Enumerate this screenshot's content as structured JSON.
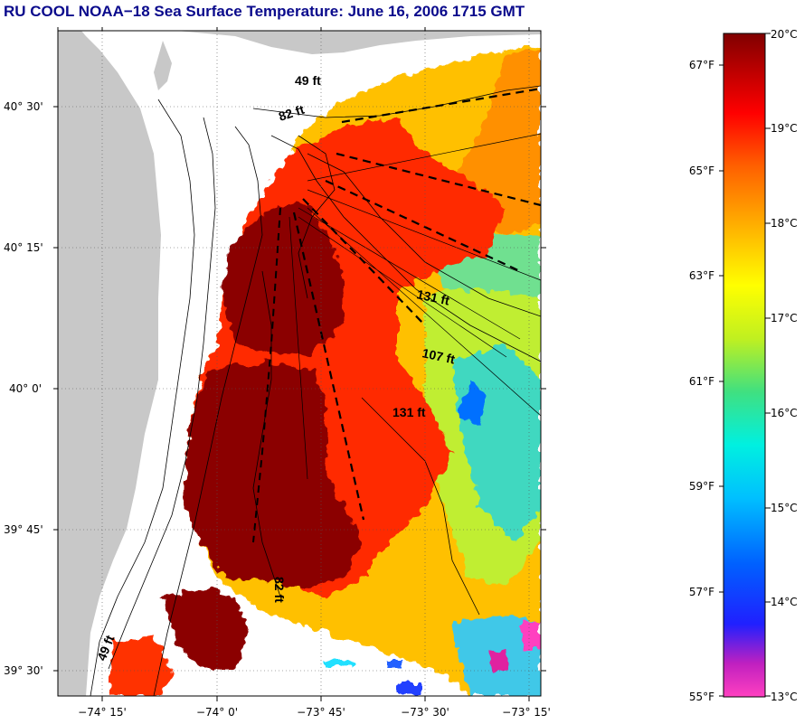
{
  "title": "RU COOL  NOAA−18  Sea Surface Temperature:  June 16, 2006 1715 GMT",
  "lat_labels": [
    "40° 30'",
    "40° 15'",
    "40° 0'",
    "39° 45'",
    "39° 30'"
  ],
  "lon_labels": [
    "−74° 15'",
    "−74° 0'",
    "−73° 45'",
    "−73° 30'",
    "−73° 15'"
  ],
  "depth_labels": [
    "49 ft",
    "82 ft",
    "131 ft",
    "107 ft",
    "131 ft",
    "82 ft",
    "49 ft"
  ],
  "colorbar": {
    "f_labels": [
      "67°F",
      "65°F",
      "63°F",
      "61°F",
      "59°F",
      "57°F",
      "55°F"
    ],
    "c_labels": [
      "20°C",
      "19°C",
      "18°C",
      "17°C",
      "16°C",
      "15°C",
      "14°C",
      "13°C"
    ],
    "stops": [
      "#ff40c0",
      "#c020c0",
      "#2020ff",
      "#0060ff",
      "#00c0ff",
      "#00f0e0",
      "#40e080",
      "#c0f020",
      "#ffff00",
      "#ffb000",
      "#ff6000",
      "#ff0000",
      "#c00000",
      "#800000"
    ]
  },
  "colors": {
    "land": "#c8c8c8",
    "title": "#0a0a8c",
    "sst_hot": "#8b0000",
    "sst_warm": "#ff3000",
    "sst_mid": "#ffc000",
    "sst_cool": "#20e0ff"
  }
}
